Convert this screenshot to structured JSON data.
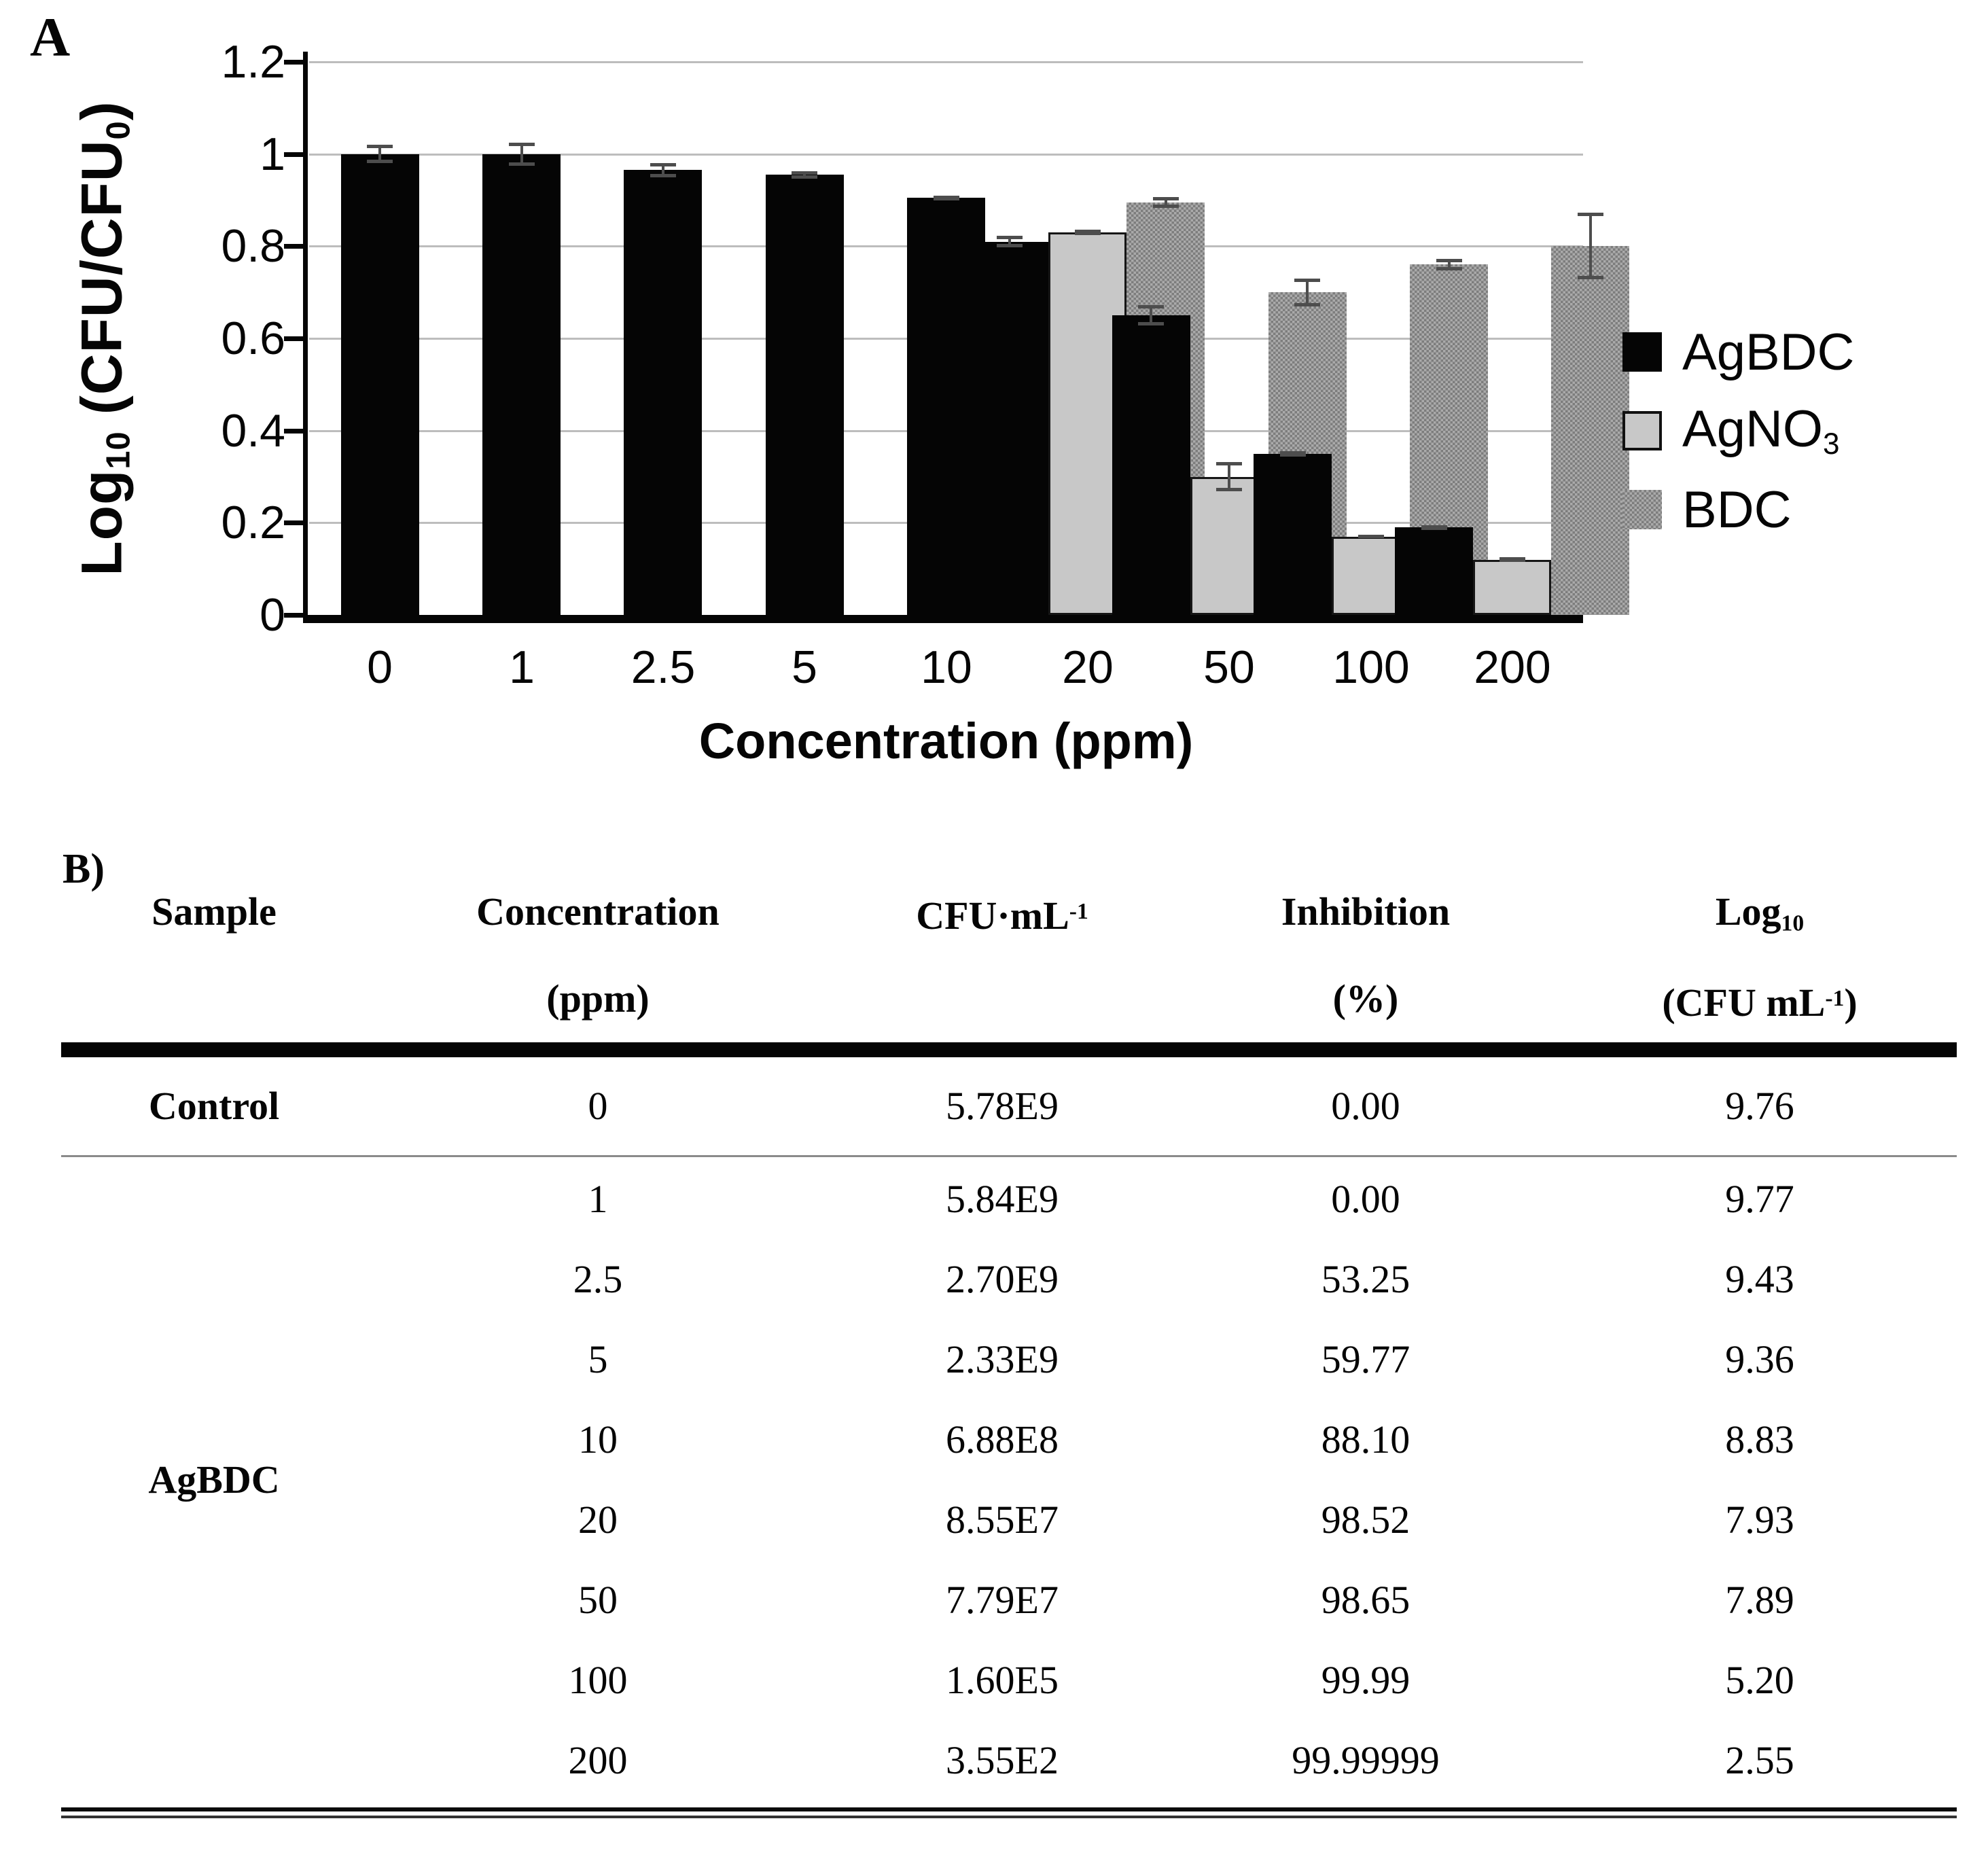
{
  "panel_a": {
    "label": "A",
    "y_axis_label": {
      "p1": "Log",
      "sub1": "10",
      "p2": " (CFU/CFU",
      "sub2": "0",
      "p3": ")"
    },
    "x_axis_title": "Concentration (ppm)",
    "legend": [
      {
        "label": "AgBDC",
        "swatch": "black-solid-square"
      },
      {
        "label_main": "AgNO",
        "label_sub": "3",
        "swatch": "light-gray-outlined-square"
      },
      {
        "label": "BDC",
        "swatch": "gray-checkered-square"
      }
    ],
    "colors": {
      "agbdc": "#050505",
      "agno3": "#c8c8c8",
      "bdc": "#979797",
      "error_bar": "#4d4d4d",
      "gridline": "#bdbdbd"
    }
  },
  "chart_data": {
    "type": "bar",
    "title": "",
    "xlabel": "Concentration (ppm)",
    "ylabel": "Log10 (CFU/CFU0)",
    "categories": [
      "0",
      "1",
      "2.5",
      "5",
      "10",
      "20",
      "50",
      "100",
      "200"
    ],
    "series": [
      {
        "name": "AgBDC",
        "values": [
          1.0,
          1.0,
          0.965,
          0.955,
          0.905,
          0.81,
          0.65,
          0.35,
          0.19
        ],
        "errors": [
          0.02,
          0.025,
          0.015,
          0.008,
          0.005,
          0.012,
          0.022,
          0.006,
          0.005
        ]
      },
      {
        "name": "AgNO3",
        "values": [
          null,
          null,
          null,
          null,
          null,
          0.83,
          0.3,
          0.17,
          0.12
        ],
        "errors": [
          null,
          null,
          null,
          null,
          null,
          0.006,
          0.032,
          0.004,
          0.005
        ]
      },
      {
        "name": "BDC",
        "values": [
          null,
          null,
          null,
          null,
          null,
          0.895,
          0.7,
          0.76,
          0.8
        ],
        "errors": [
          null,
          null,
          null,
          null,
          null,
          0.012,
          0.03,
          0.012,
          0.072
        ]
      }
    ],
    "ylim": [
      0,
      1.2
    ],
    "yticks": [
      0,
      0.2,
      0.4,
      0.6,
      0.8,
      1,
      1.2
    ],
    "grid": true,
    "legend_position": "right"
  },
  "panel_b": {
    "label": "B)",
    "headers": {
      "sample": "Sample",
      "concentration_l1": "Concentration",
      "concentration_l2": "(ppm)",
      "cfu_base": "CFU·mL",
      "cfu_sup": "-1",
      "inhibition_l1": "Inhibition",
      "inhibition_l2": "(%)",
      "log_base": "Log",
      "log_sub": "10",
      "log_l2_base": "(CFU mL",
      "log_l2_sup": "-1",
      "log_l2_end": ")"
    },
    "control_row": {
      "sample": "Control",
      "concentration": "0",
      "cfu": "5.78E9",
      "inhibition": "0.00",
      "log": "9.76"
    },
    "group_label": "AgBDC",
    "rows": [
      {
        "concentration": "1",
        "cfu": "5.84E9",
        "inhibition": "0.00",
        "log": "9.77"
      },
      {
        "concentration": "2.5",
        "cfu": "2.70E9",
        "inhibition": "53.25",
        "log": "9.43"
      },
      {
        "concentration": "5",
        "cfu": "2.33E9",
        "inhibition": "59.77",
        "log": "9.36"
      },
      {
        "concentration": "10",
        "cfu": "6.88E8",
        "inhibition": "88.10",
        "log": "8.83"
      },
      {
        "concentration": "20",
        "cfu": "8.55E7",
        "inhibition": "98.52",
        "log": "7.93"
      },
      {
        "concentration": "50",
        "cfu": "7.79E7",
        "inhibition": "98.65",
        "log": "7.89"
      },
      {
        "concentration": "100",
        "cfu": "1.60E5",
        "inhibition": "99.99",
        "log": "5.20"
      },
      {
        "concentration": "200",
        "cfu": "3.55E2",
        "inhibition": "99.99999",
        "log": "2.55"
      }
    ]
  }
}
